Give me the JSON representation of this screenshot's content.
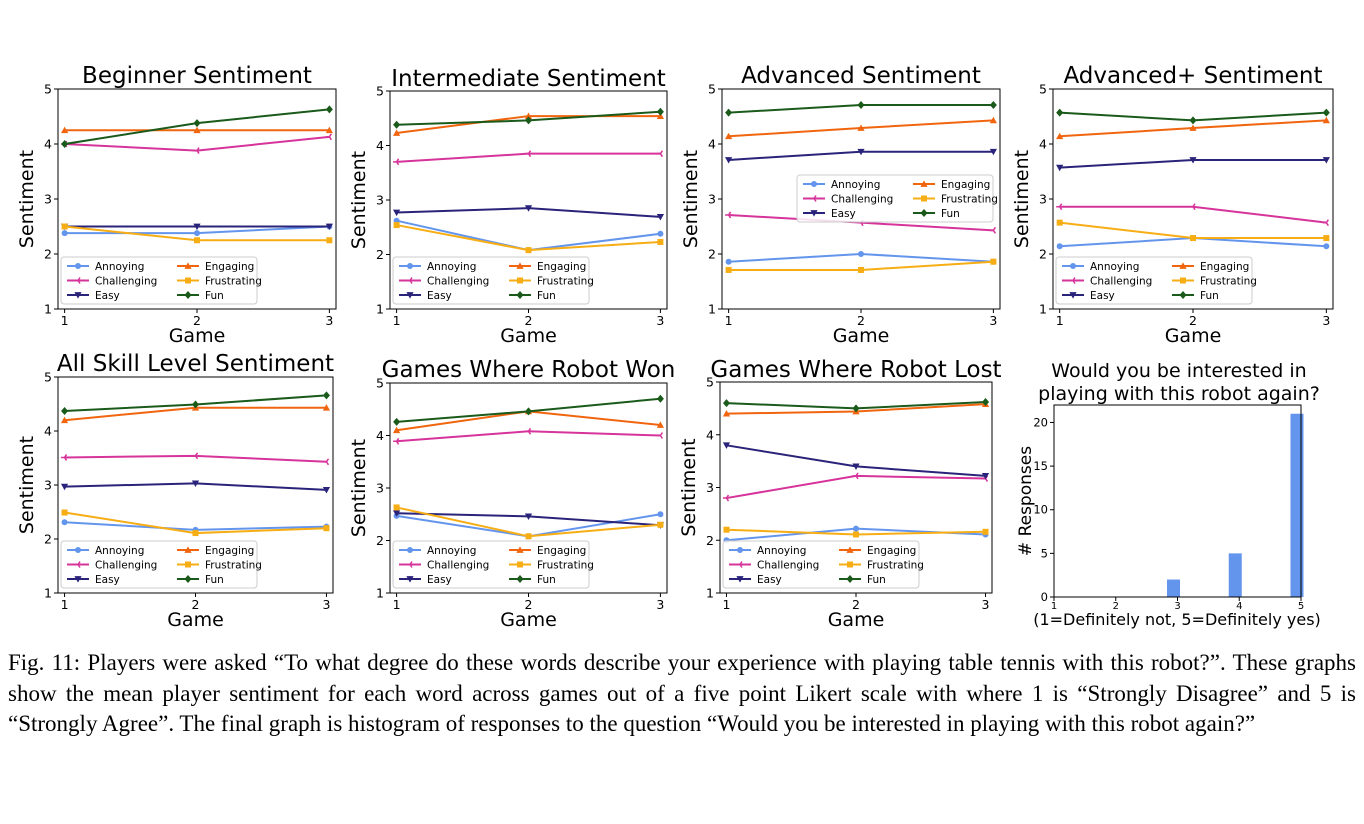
{
  "caption": "Fig. 11: Players were asked “To what degree do these words describe your experience with playing table tennis with this robot?”. These graphs show the mean player sentiment for each word across games out of a five point Likert scale with where 1 is “Strongly Disagree” and 5 is “Strongly Agree”. The final graph is histogram of responses to the question “Would you be interested in playing with this robot again?”",
  "series_style": {
    "Annoying": {
      "color": "#6495ED",
      "marker": "circle"
    },
    "Challenging": {
      "color": "#D6339B",
      "marker": "tri_left"
    },
    "Easy": {
      "color": "#2A237A",
      "marker": "triangle_down"
    },
    "Engaging": {
      "color": "#F0650E",
      "marker": "triangle_up"
    },
    "Frustrating": {
      "color": "#F7AD14",
      "marker": "square"
    },
    "Fun": {
      "color": "#1A5A1A",
      "marker": "diamond"
    }
  },
  "chart_data": [
    {
      "type": "line",
      "title": "Beginner Sentiment",
      "xlabel": "Game",
      "ylabel": "Sentiment",
      "x": [
        1,
        2,
        3
      ],
      "xlim": [
        0.95,
        3.05
      ],
      "ylim": [
        1,
        5
      ],
      "yticks": [
        1,
        2,
        3,
        4,
        5
      ],
      "legend": "lower-left",
      "series": [
        {
          "name": "Annoying",
          "values": [
            2.38,
            2.38,
            2.5
          ]
        },
        {
          "name": "Challenging",
          "values": [
            4.0,
            3.88,
            4.13
          ]
        },
        {
          "name": "Easy",
          "values": [
            2.5,
            2.5,
            2.5
          ]
        },
        {
          "name": "Engaging",
          "values": [
            4.25,
            4.25,
            4.25
          ]
        },
        {
          "name": "Frustrating",
          "values": [
            2.5,
            2.25,
            2.25
          ]
        },
        {
          "name": "Fun",
          "values": [
            4.0,
            4.38,
            4.63
          ]
        }
      ]
    },
    {
      "type": "line",
      "title": "Intermediate Sentiment",
      "xlabel": "Game",
      "ylabel": "Sentiment",
      "x": [
        1,
        2,
        3
      ],
      "xlim": [
        0.95,
        3.05
      ],
      "ylim": [
        1,
        5
      ],
      "yticks": [
        1,
        2,
        3,
        4,
        5
      ],
      "legend": "lower-left",
      "series": [
        {
          "name": "Annoying",
          "values": [
            2.62,
            2.08,
            2.38
          ]
        },
        {
          "name": "Challenging",
          "values": [
            3.7,
            3.85,
            3.85
          ]
        },
        {
          "name": "Easy",
          "values": [
            2.77,
            2.85,
            2.69
          ]
        },
        {
          "name": "Engaging",
          "values": [
            4.23,
            4.54,
            4.54
          ]
        },
        {
          "name": "Frustrating",
          "values": [
            2.54,
            2.08,
            2.23
          ]
        },
        {
          "name": "Fun",
          "values": [
            4.38,
            4.46,
            4.62
          ]
        }
      ]
    },
    {
      "type": "line",
      "title": "Advanced Sentiment",
      "xlabel": "Game",
      "ylabel": "Sentiment",
      "x": [
        1,
        2,
        3
      ],
      "xlim": [
        0.95,
        3.05
      ],
      "ylim": [
        1,
        5
      ],
      "yticks": [
        1,
        2,
        3,
        4,
        5
      ],
      "legend": "center-right",
      "series": [
        {
          "name": "Annoying",
          "values": [
            1.86,
            2.0,
            1.86
          ]
        },
        {
          "name": "Challenging",
          "values": [
            2.71,
            2.57,
            2.43
          ]
        },
        {
          "name": "Easy",
          "values": [
            3.71,
            3.86,
            3.86
          ]
        },
        {
          "name": "Engaging",
          "values": [
            4.14,
            4.29,
            4.43
          ]
        },
        {
          "name": "Frustrating",
          "values": [
            1.71,
            1.71,
            1.86
          ]
        },
        {
          "name": "Fun",
          "values": [
            4.57,
            4.71,
            4.71
          ]
        }
      ]
    },
    {
      "type": "line",
      "title": "Advanced+ Sentiment",
      "xlabel": "Game",
      "ylabel": "Sentiment",
      "x": [
        1,
        2,
        3
      ],
      "xlim": [
        0.95,
        3.05
      ],
      "ylim": [
        1,
        5
      ],
      "yticks": [
        1,
        2,
        3,
        4,
        5
      ],
      "legend": "lower-left",
      "series": [
        {
          "name": "Annoying",
          "values": [
            2.14,
            2.29,
            2.14
          ]
        },
        {
          "name": "Challenging",
          "values": [
            2.86,
            2.86,
            2.57
          ]
        },
        {
          "name": "Easy",
          "values": [
            3.57,
            3.71,
            3.71
          ]
        },
        {
          "name": "Engaging",
          "values": [
            4.14,
            4.29,
            4.43
          ]
        },
        {
          "name": "Frustrating",
          "values": [
            2.57,
            2.29,
            2.29
          ]
        },
        {
          "name": "Fun",
          "values": [
            4.57,
            4.43,
            4.57
          ]
        }
      ]
    },
    {
      "type": "line",
      "title": "All Skill Level Sentiment",
      "xlabel": "Game",
      "ylabel": "Sentiment",
      "x": [
        1,
        2,
        3
      ],
      "xlim": [
        0.95,
        3.05
      ],
      "ylim": [
        1,
        5
      ],
      "yticks": [
        1,
        2,
        3,
        4,
        5
      ],
      "legend": "lower-left",
      "series": [
        {
          "name": "Annoying",
          "values": [
            2.31,
            2.17,
            2.23
          ]
        },
        {
          "name": "Challenging",
          "values": [
            3.51,
            3.54,
            3.43
          ]
        },
        {
          "name": "Easy",
          "values": [
            2.97,
            3.03,
            2.91
          ]
        },
        {
          "name": "Engaging",
          "values": [
            4.2,
            4.43,
            4.43
          ]
        },
        {
          "name": "Frustrating",
          "values": [
            2.49,
            2.11,
            2.2
          ]
        },
        {
          "name": "Fun",
          "values": [
            4.37,
            4.49,
            4.66
          ]
        }
      ]
    },
    {
      "type": "line",
      "title": "Games Where Robot Won",
      "xlabel": "Game",
      "ylabel": "Sentiment",
      "x": [
        1,
        2,
        3
      ],
      "xlim": [
        0.95,
        3.05
      ],
      "ylim": [
        1,
        5
      ],
      "yticks": [
        1,
        2,
        3,
        4,
        5
      ],
      "legend": "lower-left",
      "series": [
        {
          "name": "Annoying",
          "values": [
            2.47,
            2.08,
            2.5
          ]
        },
        {
          "name": "Challenging",
          "values": [
            3.89,
            4.08,
            4.0
          ]
        },
        {
          "name": "Easy",
          "values": [
            2.52,
            2.46,
            2.29
          ]
        },
        {
          "name": "Engaging",
          "values": [
            4.1,
            4.46,
            4.2
          ]
        },
        {
          "name": "Frustrating",
          "values": [
            2.63,
            2.08,
            2.3
          ]
        },
        {
          "name": "Fun",
          "values": [
            4.26,
            4.46,
            4.7
          ]
        }
      ]
    },
    {
      "type": "line",
      "title": "Games Where Robot Lost",
      "xlabel": "Game",
      "ylabel": "Sentiment",
      "x": [
        1,
        2,
        3
      ],
      "xlim": [
        0.95,
        3.05
      ],
      "ylim": [
        1,
        5
      ],
      "yticks": [
        1,
        2,
        3,
        4,
        5
      ],
      "legend": "lower-left",
      "series": [
        {
          "name": "Annoying",
          "values": [
            2.0,
            2.22,
            2.11
          ]
        },
        {
          "name": "Challenging",
          "values": [
            2.8,
            3.22,
            3.17
          ]
        },
        {
          "name": "Easy",
          "values": [
            3.8,
            3.4,
            3.22
          ]
        },
        {
          "name": "Engaging",
          "values": [
            4.4,
            4.44,
            4.58
          ]
        },
        {
          "name": "Frustrating",
          "values": [
            2.2,
            2.11,
            2.16
          ]
        },
        {
          "name": "Fun",
          "values": [
            4.6,
            4.5,
            4.62
          ]
        }
      ]
    },
    {
      "type": "bar",
      "title": "Would you be interested in playing with this robot again?",
      "xlabel": "(1=Definitely not, 5=Definitely yes)",
      "ylabel": "# Responses",
      "categories": [
        1,
        2,
        3,
        4,
        5
      ],
      "values": [
        0,
        0,
        2,
        5,
        21
      ],
      "xlim": [
        1,
        5
      ],
      "ylim": [
        0,
        22
      ],
      "xticks": [
        1,
        2,
        3,
        4,
        5
      ],
      "yticks": [
        0,
        5,
        10,
        15,
        20
      ],
      "bar_color": "#6495ED"
    }
  ]
}
